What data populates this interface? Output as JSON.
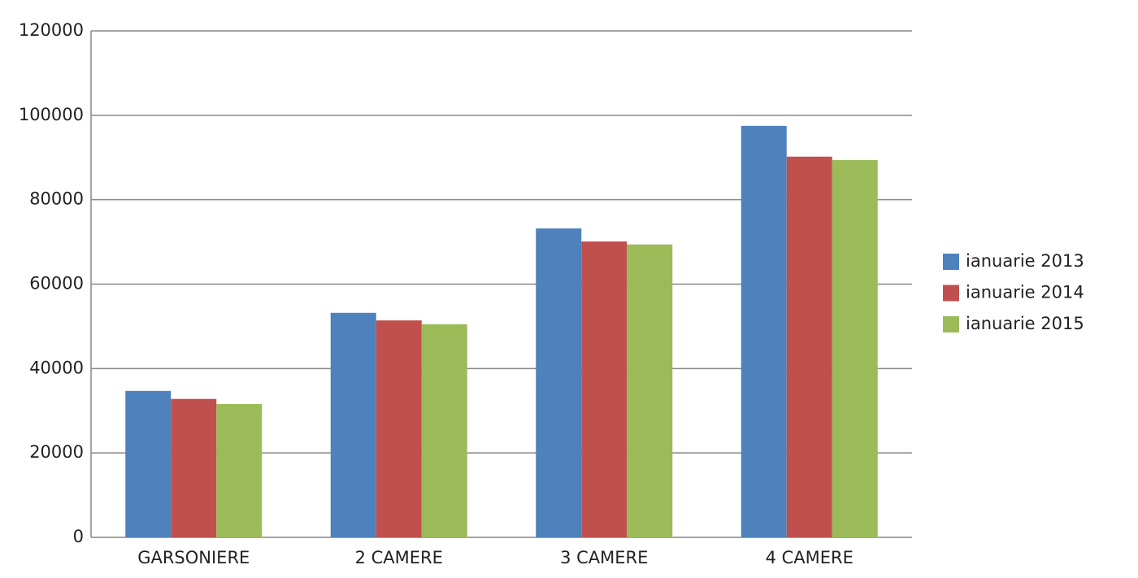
{
  "chart_data": {
    "type": "bar",
    "categories": [
      "GARSONIERE",
      "2 CAMERE",
      "3 CAMERE",
      "4 CAMERE"
    ],
    "series": [
      {
        "name": "ianuarie 2013",
        "color": "#4f81bd",
        "values": [
          34700,
          53200,
          73200,
          97500
        ]
      },
      {
        "name": "ianuarie 2014",
        "color": "#c0504d",
        "values": [
          32800,
          51400,
          70100,
          90200
        ]
      },
      {
        "name": "ianuarie 2015",
        "color": "#9bbb59",
        "values": [
          31600,
          50500,
          69400,
          89400
        ]
      }
    ],
    "ylim": [
      0,
      120000
    ],
    "yticks": [
      0,
      20000,
      40000,
      60000,
      80000,
      100000,
      120000
    ],
    "grid": true,
    "legend": "right"
  }
}
